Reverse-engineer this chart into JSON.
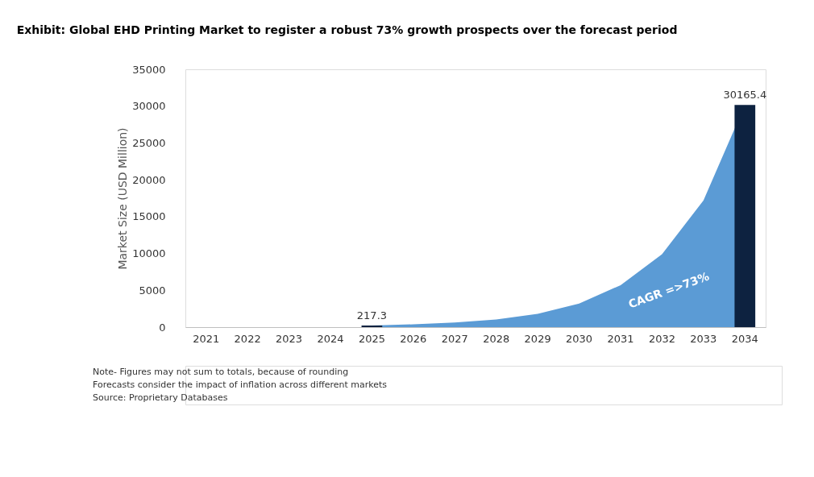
{
  "chart_data": {
    "type": "bar",
    "title": "Exhibit: Global EHD Printing Market to register a robust 73% growth prospects over the forecast period",
    "ylabel": "Market Size (USD Million)",
    "categories": [
      "2021",
      "2022",
      "2023",
      "2024",
      "2025",
      "2026",
      "2027",
      "2028",
      "2029",
      "2030",
      "2031",
      "2032",
      "2033",
      "2034"
    ],
    "series": [
      {
        "type": "area",
        "color": "#5b9bd5",
        "values": [
          null,
          null,
          null,
          null,
          217.3,
          380,
          620,
          1050,
          1800,
          3200,
          5700,
          9900,
          17200,
          30165.4
        ]
      },
      {
        "color": "#0d2240",
        "values": [
          null,
          null,
          null,
          null,
          217.3,
          null,
          null,
          null,
          null,
          null,
          null,
          null,
          null,
          30165.4
        ],
        "value_labels": [
          null,
          null,
          null,
          null,
          "217.3",
          null,
          null,
          null,
          null,
          null,
          null,
          null,
          null,
          "30165.4"
        ]
      }
    ],
    "ylim": [
      0,
      35000
    ],
    "yticks": [
      0,
      5000,
      10000,
      15000,
      20000,
      25000,
      30000,
      35000
    ],
    "annotations": [
      "CAGR =>73%",
      "Note- Figures may not sum to totals, because of rounding",
      "Forecasts consider the impact of inflation across different markets",
      "Source: Proprietary Databases"
    ]
  }
}
